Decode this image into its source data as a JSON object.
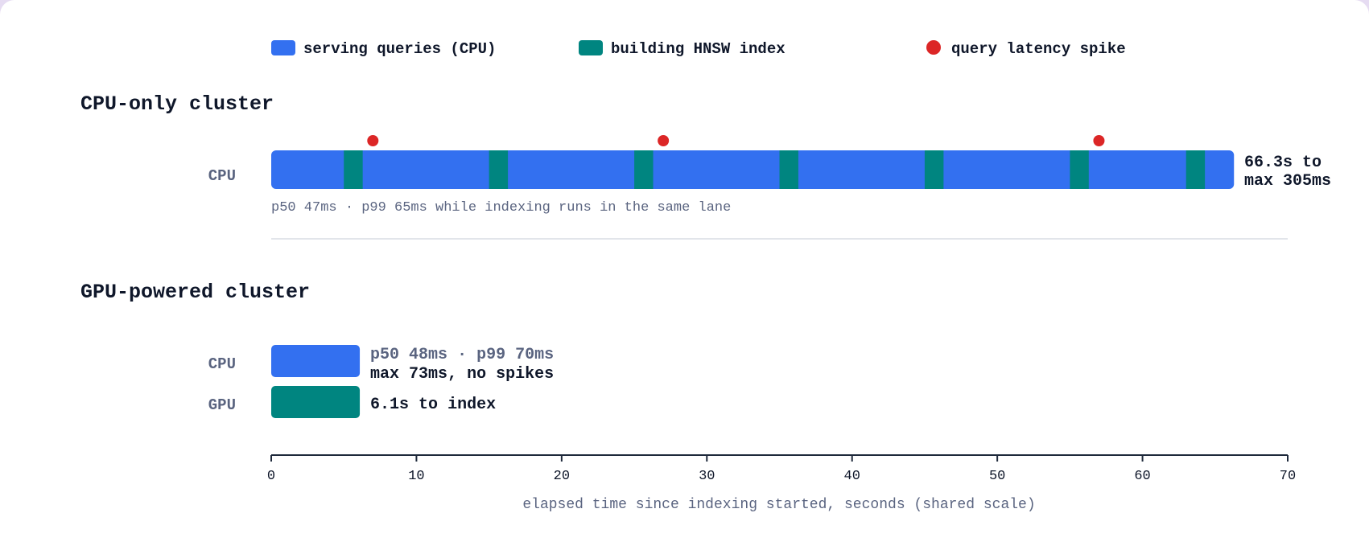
{
  "legend": [
    {
      "label": "serving queries (CPU)",
      "color": "#3370f0",
      "shape": "rect"
    },
    {
      "label": "building HNSW index",
      "color": "#008580",
      "shape": "rect"
    },
    {
      "label": "query latency spike",
      "color": "#dc2626",
      "shape": "circle"
    }
  ],
  "chart_data": {
    "type": "gantt",
    "x_axis": {
      "min": 0,
      "max": 70,
      "ticks": [
        0,
        10,
        20,
        30,
        40,
        50,
        60,
        70
      ],
      "title": "elapsed time since indexing started, seconds (shared scale)"
    },
    "sections": [
      {
        "title": "CPU-only cluster",
        "lanes": [
          {
            "label": "CPU",
            "serving": {
              "start": 0,
              "end": 66.3
            },
            "indexing_segments": [
              [
                5,
                6.3
              ],
              [
                15,
                16.3
              ],
              [
                25,
                26.3
              ],
              [
                35,
                36.3
              ],
              [
                45,
                46.3
              ],
              [
                55,
                56.3
              ],
              [
                63,
                64.3
              ]
            ],
            "spikes": [
              7,
              27,
              57
            ],
            "annotation": [
              "66.3s to",
              "max 305ms"
            ],
            "note": "p50 47ms · p99 65ms while indexing runs in the same lane"
          }
        ]
      },
      {
        "title": "GPU-powered cluster",
        "lanes": [
          {
            "label": "CPU",
            "kind": "serving",
            "start": 0,
            "end": 6.1,
            "annotation_soft": "p50 48ms · p99 70ms",
            "annotation_strong": "max 73ms, no spikes"
          },
          {
            "label": "GPU",
            "kind": "indexing",
            "start": 0,
            "end": 6.1,
            "annotation_strong": "6.1s to index"
          }
        ]
      }
    ]
  }
}
